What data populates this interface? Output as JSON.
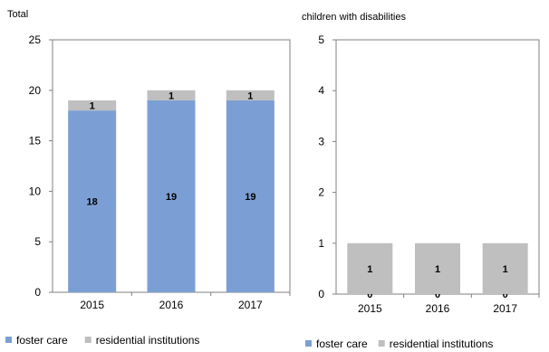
{
  "chart_data": [
    {
      "type": "bar",
      "stacked": true,
      "title": "Total",
      "categories": [
        "2015",
        "2016",
        "2017"
      ],
      "series": [
        {
          "name": "foster care",
          "values": [
            18,
            19,
            19
          ],
          "color": "#7b9fd4",
          "labels": [
            "18",
            "19",
            "19"
          ]
        },
        {
          "name": "residential institutions",
          "values": [
            1,
            1,
            1
          ],
          "color": "#bfbfbf",
          "labels": [
            "1",
            "1",
            "1"
          ]
        }
      ],
      "ylim": [
        0,
        25
      ],
      "yticks": [
        "0",
        "5",
        "10",
        "15",
        "20",
        "25"
      ],
      "grid": false,
      "legend_position": "bottom"
    },
    {
      "type": "bar",
      "stacked": true,
      "title": "children with disabilities",
      "categories": [
        "2015",
        "2016",
        "2017"
      ],
      "series": [
        {
          "name": "foster care",
          "values": [
            0,
            0,
            0
          ],
          "color": "#7b9fd4",
          "labels": [
            "0",
            "0",
            "0"
          ]
        },
        {
          "name": "residential institutions",
          "values": [
            1,
            1,
            1
          ],
          "color": "#bfbfbf",
          "labels": [
            "1",
            "1",
            "1"
          ]
        }
      ],
      "ylim": [
        0,
        5
      ],
      "yticks": [
        "0",
        "1",
        "2",
        "3",
        "4",
        "5"
      ],
      "grid": false,
      "legend_position": "bottom"
    }
  ]
}
